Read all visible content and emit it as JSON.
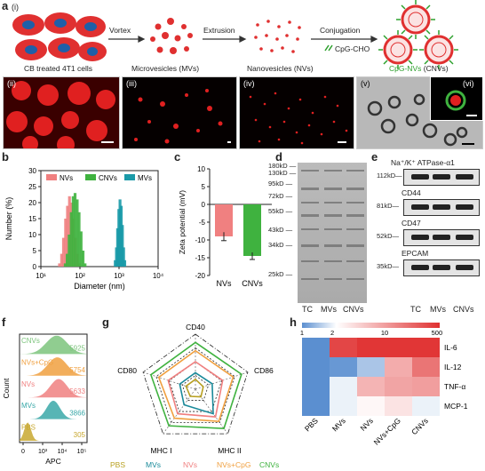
{
  "panel_a": {
    "letter": "a",
    "sub_i": "(i)",
    "sub_ii": "(ii)",
    "sub_iii": "(iii)",
    "sub_iv": "(iv)",
    "sub_v": "(v)",
    "sub_vi": "(vi)",
    "arrow_vortex": "Vortex",
    "arrow_extrusion": "Extrusion",
    "arrow_conjugation": "Conjugation",
    "reagent": "CpG-CHO",
    "label_cells": "CB treated 4T1 cells",
    "label_mvs": "Microvesicles (MVs)",
    "label_nvs": "Nanovesicles (NVs)",
    "label_cnvs_prefix": "CpG-NVs",
    "label_cnvs_suffix": "(CNVs)",
    "colors": {
      "red": "#e03030",
      "green": "#2ca02c",
      "blue": "#1f5fa8"
    }
  },
  "panel_b": {
    "letter": "b",
    "chart_data": {
      "type": "bar",
      "xlabel": "Diameter (nm)",
      "ylabel": "Number (%)",
      "xscale": "log",
      "xlim": [
        10,
        10000
      ],
      "ylim": [
        0,
        30
      ],
      "xticks": [
        "10¹",
        "10²",
        "10³",
        "10⁴"
      ],
      "yticks": [
        "0",
        "5",
        "10",
        "15",
        "20",
        "25",
        "30"
      ],
      "legend": [
        "NVs",
        "CNVs",
        "MVs"
      ],
      "series": [
        {
          "name": "NVs",
          "color": "#f08080",
          "x": [
            30,
            34,
            38,
            43,
            48,
            54,
            61,
            68,
            77,
            86,
            97
          ],
          "y": [
            1,
            4,
            9,
            15,
            19,
            22,
            20,
            15,
            9,
            4,
            1
          ]
        },
        {
          "name": "CNVs",
          "color": "#3fb23f",
          "x": [
            42,
            47,
            53,
            60,
            67,
            75,
            85,
            95,
            107,
            120,
            135
          ],
          "y": [
            1,
            4,
            10,
            17,
            22,
            23,
            21,
            17,
            11,
            5,
            1
          ]
        },
        {
          "name": "MVs",
          "color": "#1a9aa8",
          "x": [
            800,
            860,
            920,
            990,
            1060,
            1140,
            1220,
            1310,
            1400
          ],
          "y": [
            2,
            6,
            12,
            18,
            21,
            19,
            13,
            6,
            2
          ]
        }
      ]
    }
  },
  "panel_c": {
    "letter": "c",
    "chart_data": {
      "type": "bar",
      "ylabel": "Zeta potential (mV)",
      "ylim": [
        -20,
        10
      ],
      "yticks": [
        "10",
        "5",
        "0",
        "-5",
        "-10",
        "-15",
        "-20"
      ],
      "categories": [
        "NVs",
        "CNVs"
      ],
      "values": [
        -9,
        -14.5
      ],
      "errors": [
        1.2,
        1.0
      ],
      "colors": [
        "#f08080",
        "#3fb23f"
      ]
    }
  },
  "panel_d": {
    "letter": "d",
    "markers": [
      "180kD",
      "130kD",
      "95kD",
      "72kD",
      "55kD",
      "43kD",
      "34kD",
      "25kD"
    ],
    "lanes": [
      "TC",
      "MVs",
      "CNVs"
    ]
  },
  "panel_e": {
    "letter": "e",
    "rows": [
      {
        "kd": "112kD",
        "name": "Na⁺/K⁺ ATPase-α1"
      },
      {
        "kd": "81kD",
        "name": "CD44"
      },
      {
        "kd": "52kD",
        "name": "CD47"
      },
      {
        "kd": "35kD",
        "name": "EPCAM"
      }
    ],
    "lanes": [
      "TC",
      "MVs",
      "CNVs"
    ]
  },
  "panel_f": {
    "letter": "f",
    "xlabel": "APC",
    "ylabel": "Count",
    "xticks": [
      "0",
      "10³",
      "10⁴",
      "10⁵"
    ],
    "chart_data": {
      "type": "area",
      "series": [
        {
          "name": "CNVs",
          "value": "5925",
          "color": "#7cc47c"
        },
        {
          "name": "NVs+CpG",
          "value": "5754",
          "color": "#f0a040"
        },
        {
          "name": "NVs",
          "value": "5633",
          "color": "#f08080"
        },
        {
          "name": "MVs",
          "value": "3866",
          "color": "#3aa8a8"
        },
        {
          "name": "PBS",
          "value": "305",
          "color": "#c8a830"
        }
      ]
    }
  },
  "panel_g": {
    "letter": "g",
    "chart_data": {
      "type": "radar",
      "axes": [
        "CD40",
        "CD86",
        "MHC II",
        "MHC I",
        "CD80"
      ],
      "series": [
        {
          "name": "PBS",
          "color": "#b8a020",
          "values": [
            0.18,
            0.15,
            0.17,
            0.16,
            0.18
          ]
        },
        {
          "name": "MVs",
          "color": "#1a8a9a",
          "values": [
            0.3,
            0.32,
            0.55,
            0.35,
            0.3
          ]
        },
        {
          "name": "NVs",
          "color": "#f08080",
          "values": [
            0.5,
            0.52,
            0.62,
            0.55,
            0.52
          ]
        },
        {
          "name": "NVs+CpG",
          "color": "#f0a040",
          "values": [
            0.7,
            0.72,
            0.72,
            0.65,
            0.7
          ]
        },
        {
          "name": "CNVs",
          "color": "#3fb23f",
          "values": [
            0.85,
            0.88,
            0.88,
            0.82,
            0.85
          ]
        }
      ]
    }
  },
  "panel_h": {
    "letter": "h",
    "chart_data": {
      "type": "heatmap",
      "colorbar_ticks": [
        "1",
        "2",
        "10",
        "500"
      ],
      "rows": [
        "IL-6",
        "IL-12",
        "TNF-α",
        "MCP-1"
      ],
      "cols": [
        "PBS",
        "MVs",
        "NVs",
        "NVs+CpG",
        "CNVs"
      ],
      "values": [
        [
          0.0,
          0.92,
          0.98,
          0.98,
          0.98
        ],
        [
          0.0,
          0.02,
          0.12,
          0.55,
          0.75
        ],
        [
          0.0,
          0.22,
          0.52,
          0.58,
          0.6
        ],
        [
          0.0,
          0.22,
          0.28,
          0.35,
          0.22
        ]
      ]
    }
  }
}
